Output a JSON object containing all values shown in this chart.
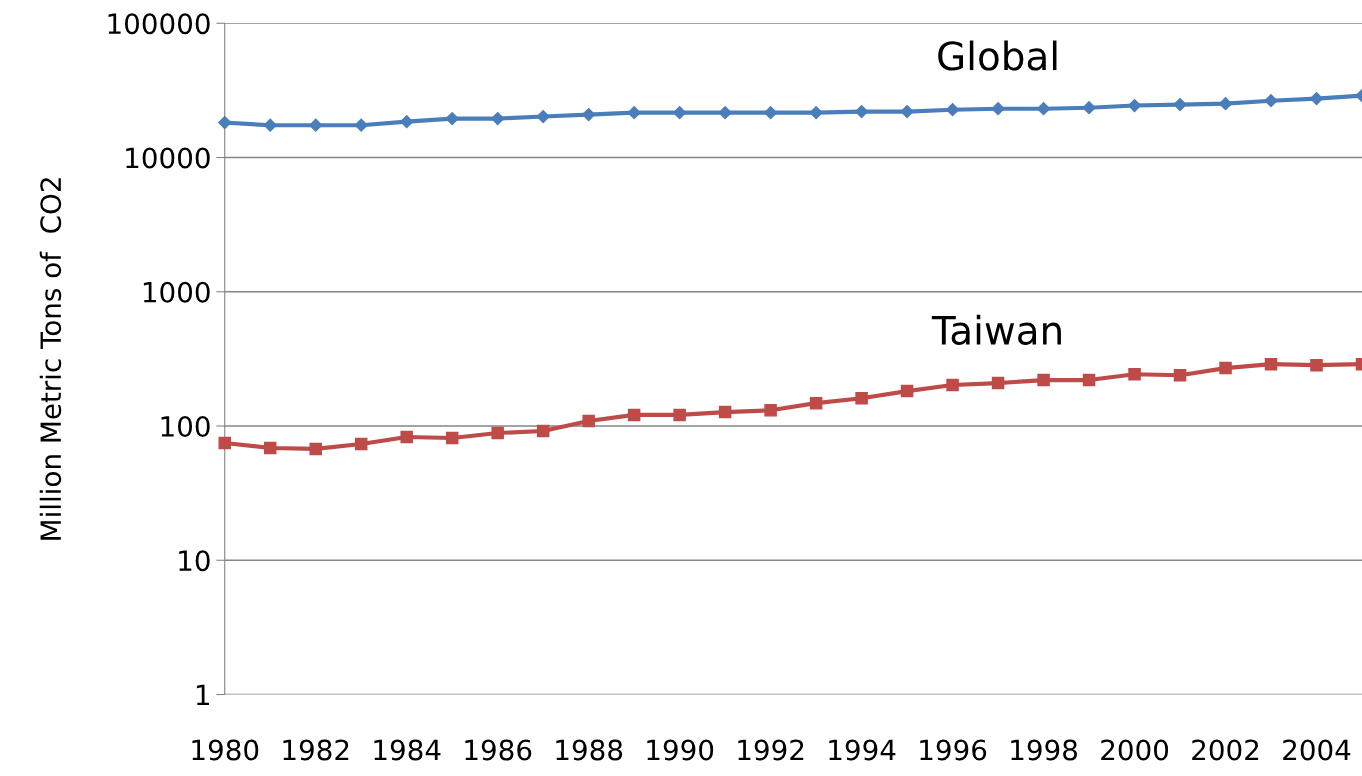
{
  "chart_data": {
    "type": "line",
    "ylabel": "Million Metric Tons of  CO2",
    "categories": [
      "1980",
      null,
      "1982",
      null,
      "1984",
      null,
      "1986",
      null,
      "1988",
      null,
      "1990",
      null,
      "1992",
      null,
      "1994",
      null,
      "1996",
      null,
      "1998",
      null,
      "2000",
      null,
      "2002",
      null,
      "2004",
      null
    ],
    "series": [
      {
        "name": "Global",
        "color": "#4a7ebb",
        "marker": "diamond",
        "values": [
          18200,
          17400,
          17400,
          17400,
          18500,
          19500,
          19500,
          20200,
          20900,
          21600,
          21600,
          21600,
          21600,
          21600,
          22000,
          22000,
          22700,
          23100,
          23100,
          23500,
          24400,
          24800,
          25200,
          26500,
          27500,
          28900
        ]
      },
      {
        "name": "Taiwan",
        "color": "#be4b48",
        "marker": "square",
        "values": [
          74.8,
          68.6,
          67.5,
          73.5,
          82.8,
          81.4,
          88.7,
          91.8,
          109,
          121,
          121,
          127,
          131,
          148,
          161,
          182,
          202,
          209,
          220,
          220,
          243,
          239,
          270,
          289,
          284,
          289
        ]
      }
    ],
    "log": true,
    "ylim": [
      1,
      100000
    ],
    "yticks": [
      1,
      10,
      100,
      1000,
      10000,
      100000
    ],
    "grid": "y",
    "line_style": "solid"
  }
}
